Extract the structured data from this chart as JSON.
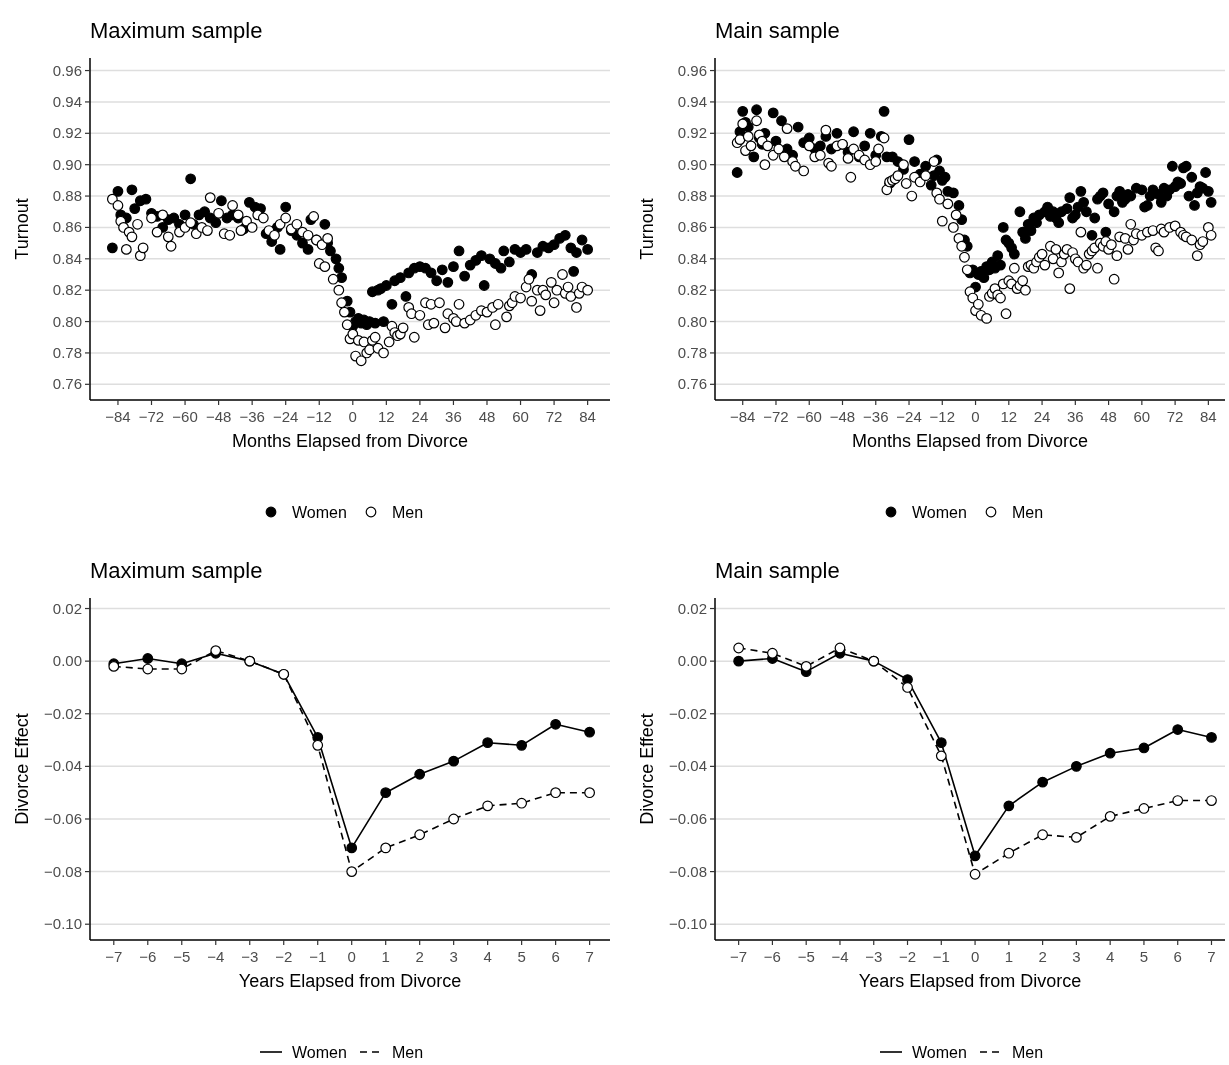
{
  "chart_data": [
    {
      "type": "scatter",
      "title": "Maximum sample",
      "xlabel": "Months Elapsed from Divorce",
      "ylabel": "Turnout",
      "xlim": [
        -94,
        92
      ],
      "ylim": [
        0.75,
        0.968
      ],
      "grid": "y",
      "legend": "bottom",
      "marker": "circle",
      "xticks": [
        {
          "value": -84,
          "label": "−84"
        },
        {
          "value": -72,
          "label": "−72"
        },
        {
          "value": -60,
          "label": "−60"
        },
        {
          "value": -48,
          "label": "−48"
        },
        {
          "value": -36,
          "label": "−36"
        },
        {
          "value": -24,
          "label": "−24"
        },
        {
          "value": -12,
          "label": "−12"
        },
        0,
        12,
        24,
        36,
        48,
        60,
        72,
        84
      ],
      "yticks": [
        {
          "value": 0.76,
          "label": "0.76"
        },
        {
          "value": 0.78,
          "label": "0.78"
        },
        {
          "value": 0.8,
          "label": "0.80"
        },
        {
          "value": 0.82,
          "label": "0.82"
        },
        {
          "value": 0.84,
          "label": "0.84"
        },
        {
          "value": 0.86,
          "label": "0.86"
        },
        {
          "value": 0.88,
          "label": "0.88"
        },
        {
          "value": 0.9,
          "label": "0.90"
        },
        {
          "value": 0.92,
          "label": "0.92"
        },
        {
          "value": 0.94,
          "label": "0.94"
        },
        {
          "value": 0.96,
          "label": "0.96"
        }
      ],
      "series": [
        {
          "name": "Women",
          "color": "#000000",
          "x": [
            -86,
            -84,
            -83,
            -81,
            -79,
            -78,
            -76,
            -74,
            -72,
            -70,
            -68,
            -66,
            -64,
            -62,
            -60,
            -58,
            -57,
            -55,
            -53,
            -51,
            -49,
            -47,
            -45,
            -43,
            -41,
            -39,
            -37,
            -35,
            -33,
            -31,
            -29,
            -27,
            -26,
            -24,
            -22,
            -20,
            -18,
            -16,
            -15,
            -13,
            -10,
            -9,
            -8,
            -6,
            -5,
            -4,
            -2,
            -1,
            0,
            1,
            2,
            3,
            4,
            5,
            6,
            7,
            8,
            9,
            10,
            11,
            12,
            14,
            15,
            17,
            19,
            20,
            22,
            24,
            26,
            28,
            30,
            32,
            34,
            36,
            38,
            40,
            42,
            44,
            46,
            47,
            49,
            51,
            53,
            54,
            56,
            58,
            60,
            62,
            64,
            66,
            68,
            70,
            72,
            74,
            76,
            78,
            79,
            80,
            82,
            84
          ],
          "values": [
            0.847,
            0.883,
            0.868,
            0.866,
            0.884,
            0.872,
            0.877,
            0.878,
            0.869,
            0.867,
            0.86,
            0.865,
            0.866,
            0.862,
            0.868,
            0.891,
            0.862,
            0.868,
            0.87,
            0.866,
            0.863,
            0.877,
            0.866,
            0.868,
            0.866,
            0.859,
            0.876,
            0.873,
            0.872,
            0.856,
            0.851,
            0.86,
            0.846,
            0.873,
            0.858,
            0.855,
            0.85,
            0.846,
            0.865,
            0.852,
            0.862,
            0.85,
            0.845,
            0.84,
            0.834,
            0.828,
            0.813,
            0.806,
            0.797,
            0.8,
            0.802,
            0.799,
            0.801,
            0.798,
            0.8,
            0.819,
            0.799,
            0.82,
            0.821,
            0.8,
            0.823,
            0.811,
            0.826,
            0.828,
            0.816,
            0.831,
            0.834,
            0.835,
            0.834,
            0.831,
            0.826,
            0.833,
            0.825,
            0.835,
            0.845,
            0.829,
            0.836,
            0.839,
            0.842,
            0.823,
            0.84,
            0.837,
            0.834,
            0.845,
            0.838,
            0.846,
            0.844,
            0.846,
            0.83,
            0.844,
            0.848,
            0.847,
            0.849,
            0.853,
            0.855,
            0.847,
            0.832,
            0.844,
            0.852,
            0.846
          ]
        },
        {
          "name": "Men",
          "color": "#ffffff",
          "x": [
            -86,
            -84,
            -83,
            -82,
            -81,
            -80,
            -79,
            -77,
            -76,
            -75,
            -72,
            -70,
            -68,
            -66,
            -65,
            -62,
            -60,
            -58,
            -56,
            -54,
            -52,
            -51,
            -48,
            -46,
            -44,
            -43,
            -41,
            -40,
            -38,
            -36,
            -34,
            -32,
            -30,
            -28,
            -26,
            -24,
            -22,
            -20,
            -18,
            -16,
            -14,
            -13,
            -12,
            -11,
            -10,
            -9,
            -7,
            -5,
            -4,
            -3,
            -2,
            -1,
            0,
            1,
            2,
            3,
            4,
            5,
            6,
            7,
            8,
            9,
            11,
            13,
            14,
            15,
            16,
            17,
            18,
            20,
            21,
            22,
            24,
            26,
            27,
            28,
            29,
            31,
            33,
            34,
            36,
            37,
            38,
            40,
            42,
            44,
            46,
            48,
            50,
            51,
            52,
            55,
            56,
            57,
            58,
            60,
            62,
            63,
            64,
            66,
            67,
            68,
            69,
            71,
            72,
            73,
            75,
            76,
            77,
            78,
            80,
            81,
            82,
            84
          ],
          "values": [
            0.878,
            0.874,
            0.864,
            0.86,
            0.846,
            0.857,
            0.854,
            0.862,
            0.842,
            0.847,
            0.866,
            0.857,
            0.868,
            0.854,
            0.848,
            0.857,
            0.86,
            0.863,
            0.856,
            0.86,
            0.858,
            0.879,
            0.869,
            0.856,
            0.855,
            0.874,
            0.868,
            0.858,
            0.864,
            0.86,
            0.868,
            0.866,
            0.858,
            0.855,
            0.862,
            0.866,
            0.859,
            0.862,
            0.857,
            0.855,
            0.867,
            0.852,
            0.837,
            0.849,
            0.835,
            0.853,
            0.827,
            0.82,
            0.812,
            0.806,
            0.798,
            0.789,
            0.792,
            0.778,
            0.788,
            0.775,
            0.787,
            0.78,
            0.782,
            0.788,
            0.79,
            0.783,
            0.78,
            0.787,
            0.797,
            0.793,
            0.791,
            0.792,
            0.796,
            0.809,
            0.805,
            0.79,
            0.804,
            0.812,
            0.798,
            0.811,
            0.799,
            0.812,
            0.796,
            0.805,
            0.802,
            0.8,
            0.811,
            0.799,
            0.801,
            0.804,
            0.807,
            0.806,
            0.809,
            0.798,
            0.811,
            0.803,
            0.81,
            0.812,
            0.816,
            0.815,
            0.822,
            0.827,
            0.813,
            0.82,
            0.807,
            0.82,
            0.817,
            0.825,
            0.812,
            0.82,
            0.83,
            0.818,
            0.822,
            0.816,
            0.809,
            0.818,
            0.822,
            0.82
          ]
        }
      ]
    },
    {
      "type": "scatter",
      "title": "Main sample",
      "xlabel": "Months Elapsed from Divorce",
      "ylabel": "Turnout",
      "xlim": [
        -94,
        90
      ],
      "ylim": [
        0.75,
        0.968
      ],
      "grid": "y",
      "legend": "bottom",
      "marker": "circle",
      "xticks": [
        {
          "value": -84,
          "label": "−84"
        },
        {
          "value": -72,
          "label": "−72"
        },
        {
          "value": -60,
          "label": "−60"
        },
        {
          "value": -48,
          "label": "−48"
        },
        {
          "value": -36,
          "label": "−36"
        },
        {
          "value": -24,
          "label": "−24"
        },
        {
          "value": -12,
          "label": "−12"
        },
        0,
        12,
        24,
        36,
        48,
        60,
        72,
        84
      ],
      "yticks": [
        {
          "value": 0.76,
          "label": "0.76"
        },
        {
          "value": 0.78,
          "label": "0.78"
        },
        {
          "value": 0.8,
          "label": "0.80"
        },
        {
          "value": 0.82,
          "label": "0.82"
        },
        {
          "value": 0.84,
          "label": "0.84"
        },
        {
          "value": 0.86,
          "label": "0.86"
        },
        {
          "value": 0.88,
          "label": "0.88"
        },
        {
          "value": 0.9,
          "label": "0.90"
        },
        {
          "value": 0.92,
          "label": "0.92"
        },
        {
          "value": 0.94,
          "label": "0.94"
        },
        {
          "value": 0.96,
          "label": "0.96"
        }
      ],
      "series": [
        {
          "name": "Women",
          "color": "#000000",
          "x": [
            -86,
            -85,
            -84,
            -83,
            -82,
            -80,
            -79,
            -78,
            -77,
            -76,
            -73,
            -72,
            -70,
            -68,
            -66,
            -64,
            -62,
            -60,
            -58,
            -56,
            -54,
            -52,
            -50,
            -48,
            -46,
            -44,
            -42,
            -40,
            -38,
            -36,
            -34,
            -33,
            -32,
            -31,
            -30,
            -28,
            -26,
            -24,
            -22,
            -20,
            -18,
            -16,
            -15,
            -14,
            -13,
            -12,
            -11,
            -10,
            -8,
            -6,
            -5,
            -4,
            -3,
            -2,
            -1,
            0,
            1,
            2,
            3,
            4,
            5,
            6,
            7,
            8,
            9,
            10,
            11,
            12,
            13,
            14,
            16,
            17,
            18,
            19,
            20,
            21,
            22,
            23,
            25,
            26,
            27,
            28,
            29,
            30,
            31,
            33,
            34,
            35,
            36,
            37,
            38,
            39,
            40,
            42,
            43,
            44,
            45,
            46,
            47,
            48,
            50,
            51,
            52,
            53,
            54,
            55,
            56,
            58,
            60,
            61,
            62,
            63,
            64,
            66,
            67,
            68,
            69,
            70,
            71,
            72,
            73,
            74,
            75,
            76,
            77,
            78,
            79,
            80,
            81,
            82,
            83,
            84,
            85
          ],
          "values": [
            0.895,
            0.921,
            0.934,
            0.927,
            0.924,
            0.905,
            0.935,
            0.917,
            0.913,
            0.92,
            0.933,
            0.915,
            0.928,
            0.91,
            0.906,
            0.924,
            0.914,
            0.917,
            0.91,
            0.912,
            0.918,
            0.91,
            0.92,
            0.913,
            0.908,
            0.921,
            0.905,
            0.912,
            0.92,
            0.906,
            0.918,
            0.934,
            0.905,
            0.888,
            0.905,
            0.902,
            0.897,
            0.916,
            0.902,
            0.894,
            0.899,
            0.887,
            0.893,
            0.903,
            0.896,
            0.89,
            0.892,
            0.883,
            0.882,
            0.874,
            0.865,
            0.852,
            0.848,
            0.831,
            0.833,
            0.822,
            0.83,
            0.832,
            0.828,
            0.835,
            0.833,
            0.838,
            0.834,
            0.842,
            0.836,
            0.86,
            0.852,
            0.85,
            0.847,
            0.843,
            0.87,
            0.857,
            0.853,
            0.862,
            0.858,
            0.866,
            0.863,
            0.868,
            0.87,
            0.873,
            0.867,
            0.87,
            0.866,
            0.863,
            0.87,
            0.872,
            0.879,
            0.866,
            0.868,
            0.873,
            0.883,
            0.876,
            0.87,
            0.855,
            0.866,
            0.878,
            0.88,
            0.882,
            0.857,
            0.875,
            0.87,
            0.88,
            0.883,
            0.876,
            0.878,
            0.881,
            0.88,
            0.885,
            0.884,
            0.873,
            0.874,
            0.88,
            0.884,
            0.881,
            0.876,
            0.885,
            0.88,
            0.884,
            0.899,
            0.886,
            0.889,
            0.888,
            0.898,
            0.899,
            0.88,
            0.892,
            0.874,
            0.882,
            0.886,
            0.885,
            0.895,
            0.883,
            0.876
          ]
        },
        {
          "name": "Men",
          "color": "#ffffff",
          "x": [
            -86,
            -85,
            -84,
            -83,
            -82,
            -81,
            -79,
            -78,
            -77,
            -76,
            -75,
            -73,
            -71,
            -69,
            -68,
            -66,
            -65,
            -62,
            -60,
            -58,
            -56,
            -54,
            -53,
            -52,
            -50,
            -48,
            -46,
            -45,
            -44,
            -42,
            -40,
            -38,
            -36,
            -35,
            -33,
            -32,
            -31,
            -30,
            -29,
            -28,
            -26,
            -25,
            -23,
            -22,
            -20,
            -18,
            -15,
            -14,
            -13,
            -12,
            -10,
            -8,
            -7,
            -6,
            -5,
            -4,
            -3,
            -2,
            -1,
            0,
            1,
            2,
            4,
            5,
            6,
            7,
            8,
            9,
            10,
            11,
            12,
            13,
            14,
            15,
            16,
            17,
            18,
            19,
            20,
            21,
            22,
            23,
            24,
            25,
            27,
            28,
            29,
            30,
            31,
            32,
            33,
            34,
            35,
            36,
            37,
            38,
            39,
            40,
            41,
            42,
            43,
            44,
            45,
            46,
            47,
            48,
            49,
            50,
            51,
            52,
            54,
            55,
            56,
            57,
            58,
            60,
            62,
            64,
            65,
            66,
            67,
            68,
            70,
            72,
            74,
            75,
            76,
            78,
            80,
            81,
            82,
            84,
            85
          ],
          "values": [
            0.914,
            0.916,
            0.926,
            0.909,
            0.918,
            0.912,
            0.928,
            0.919,
            0.915,
            0.9,
            0.912,
            0.906,
            0.91,
            0.905,
            0.923,
            0.902,
            0.899,
            0.896,
            0.912,
            0.905,
            0.906,
            0.922,
            0.901,
            0.899,
            0.912,
            0.913,
            0.904,
            0.892,
            0.91,
            0.906,
            0.903,
            0.9,
            0.902,
            0.91,
            0.917,
            0.884,
            0.889,
            0.89,
            0.891,
            0.893,
            0.9,
            0.888,
            0.88,
            0.892,
            0.889,
            0.893,
            0.902,
            0.882,
            0.878,
            0.864,
            0.875,
            0.86,
            0.868,
            0.853,
            0.848,
            0.841,
            0.833,
            0.819,
            0.815,
            0.807,
            0.811,
            0.804,
            0.802,
            0.816,
            0.818,
            0.821,
            0.817,
            0.815,
            0.824,
            0.805,
            0.826,
            0.824,
            0.834,
            0.821,
            0.823,
            0.826,
            0.82,
            0.835,
            0.836,
            0.834,
            0.838,
            0.841,
            0.843,
            0.836,
            0.848,
            0.84,
            0.846,
            0.831,
            0.838,
            0.843,
            0.846,
            0.821,
            0.844,
            0.84,
            0.838,
            0.857,
            0.834,
            0.836,
            0.843,
            0.845,
            0.847,
            0.834,
            0.85,
            0.848,
            0.851,
            0.846,
            0.849,
            0.827,
            0.842,
            0.854,
            0.853,
            0.846,
            0.862,
            0.852,
            0.856,
            0.855,
            0.857,
            0.858,
            0.847,
            0.845,
            0.859,
            0.857,
            0.86,
            0.861,
            0.857,
            0.855,
            0.854,
            0.852,
            0.842,
            0.849,
            0.851,
            0.86,
            0.855
          ]
        }
      ]
    },
    {
      "type": "line",
      "title": "Maximum sample",
      "xlabel": "Years Elapsed from Divorce",
      "ylabel": "Divorce Effect",
      "xlim": [
        -7.7,
        7.6
      ],
      "ylim": [
        -0.106,
        0.024
      ],
      "grid": "y",
      "legend": "bottom",
      "marker": "circle",
      "x": [
        -7,
        -6,
        -5,
        -4,
        -3,
        -2,
        -1,
        0,
        1,
        2,
        3,
        4,
        5,
        6,
        7
      ],
      "xticks": [
        {
          "value": -7,
          "label": "−7"
        },
        {
          "value": -6,
          "label": "−6"
        },
        {
          "value": -5,
          "label": "−5"
        },
        {
          "value": -4,
          "label": "−4"
        },
        {
          "value": -3,
          "label": "−3"
        },
        {
          "value": -2,
          "label": "−2"
        },
        {
          "value": -1,
          "label": "−1"
        },
        0,
        1,
        2,
        3,
        4,
        5,
        6,
        7
      ],
      "yticks": [
        {
          "value": -0.1,
          "label": "−0.10"
        },
        {
          "value": -0.08,
          "label": "−0.08"
        },
        {
          "value": -0.06,
          "label": "−0.06"
        },
        {
          "value": -0.04,
          "label": "−0.04"
        },
        {
          "value": -0.02,
          "label": "−0.02"
        },
        {
          "value": 0,
          "label": "0.00"
        },
        {
          "value": 0.02,
          "label": "0.02"
        }
      ],
      "series": [
        {
          "name": "Women",
          "color": "#000000",
          "line_style": "solid",
          "values": [
            -0.001,
            0.001,
            -0.001,
            0.003,
            0.0,
            -0.005,
            -0.029,
            -0.071,
            -0.05,
            -0.043,
            -0.038,
            -0.031,
            -0.032,
            -0.024,
            -0.027
          ]
        },
        {
          "name": "Men",
          "color": "#ffffff",
          "line_style": "dashed",
          "values": [
            -0.002,
            -0.003,
            -0.003,
            0.004,
            0.0,
            -0.005,
            -0.032,
            -0.08,
            -0.071,
            -0.066,
            -0.06,
            -0.055,
            -0.054,
            -0.05,
            -0.05
          ]
        }
      ]
    },
    {
      "type": "line",
      "title": "Main sample",
      "xlabel": "Years Elapsed from Divorce",
      "ylabel": "Divorce Effect",
      "xlim": [
        -7.7,
        7.4
      ],
      "ylim": [
        -0.106,
        0.024
      ],
      "grid": "y",
      "legend": "bottom",
      "marker": "circle",
      "x": [
        -7,
        -6,
        -5,
        -4,
        -3,
        -2,
        -1,
        0,
        1,
        2,
        3,
        4,
        5,
        6,
        7
      ],
      "xticks": [
        {
          "value": -7,
          "label": "−7"
        },
        {
          "value": -6,
          "label": "−6"
        },
        {
          "value": -5,
          "label": "−5"
        },
        {
          "value": -4,
          "label": "−4"
        },
        {
          "value": -3,
          "label": "−3"
        },
        {
          "value": -2,
          "label": "−2"
        },
        {
          "value": -1,
          "label": "−1"
        },
        0,
        1,
        2,
        3,
        4,
        5,
        6,
        7
      ],
      "yticks": [
        {
          "value": -0.1,
          "label": "−0.10"
        },
        {
          "value": -0.08,
          "label": "−0.08"
        },
        {
          "value": -0.06,
          "label": "−0.06"
        },
        {
          "value": -0.04,
          "label": "−0.04"
        },
        {
          "value": -0.02,
          "label": "−0.02"
        },
        {
          "value": 0,
          "label": "0.00"
        },
        {
          "value": 0.02,
          "label": "0.02"
        }
      ],
      "series": [
        {
          "name": "Women",
          "color": "#000000",
          "line_style": "solid",
          "values": [
            0.0,
            0.001,
            -0.004,
            0.003,
            0.0,
            -0.007,
            -0.031,
            -0.074,
            -0.055,
            -0.046,
            -0.04,
            -0.035,
            -0.033,
            -0.026,
            -0.029
          ]
        },
        {
          "name": "Men",
          "color": "#ffffff",
          "line_style": "dashed",
          "values": [
            0.005,
            0.003,
            -0.002,
            0.005,
            0.0,
            -0.01,
            -0.036,
            -0.081,
            -0.073,
            -0.066,
            -0.067,
            -0.059,
            -0.056,
            -0.053,
            -0.053
          ]
        }
      ]
    }
  ]
}
